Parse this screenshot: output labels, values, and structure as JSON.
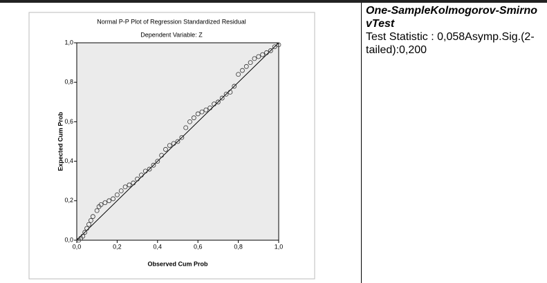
{
  "chart_data": {
    "type": "scatter",
    "title": "Normal P-P Plot of Regression Standardized Residual",
    "subtitle": "Dependent Variable: Z",
    "xlabel": "Observed Cum Prob",
    "ylabel": "Expected Cum Prob",
    "color": "#333333",
    "xlim": [
      0,
      1
    ],
    "ylim": [
      0,
      1
    ],
    "xticks": [
      {
        "value": 0,
        "label": "0,0"
      },
      {
        "value": 0.2,
        "label": "0,2"
      },
      {
        "value": 0.4,
        "label": "0,4"
      },
      {
        "value": 0.6,
        "label": "0,6"
      },
      {
        "value": 0.8,
        "label": "0,8"
      },
      {
        "value": 1,
        "label": "1,0"
      }
    ],
    "yticks": [
      {
        "value": 0,
        "label": "0,0"
      },
      {
        "value": 0.2,
        "label": "0,2"
      },
      {
        "value": 0.4,
        "label": "0,4"
      },
      {
        "value": 0.6,
        "label": "0,6"
      },
      {
        "value": 0.8,
        "label": "0,8"
      },
      {
        "value": 1,
        "label": "1,0"
      }
    ],
    "x": [
      0.01,
      0.02,
      0.03,
      0.04,
      0.05,
      0.06,
      0.07,
      0.08,
      0.1,
      0.11,
      0.12,
      0.14,
      0.16,
      0.18,
      0.2,
      0.22,
      0.24,
      0.26,
      0.28,
      0.3,
      0.32,
      0.34,
      0.36,
      0.38,
      0.4,
      0.42,
      0.44,
      0.46,
      0.48,
      0.5,
      0.52,
      0.54,
      0.56,
      0.58,
      0.6,
      0.62,
      0.64,
      0.66,
      0.68,
      0.7,
      0.72,
      0.74,
      0.76,
      0.78,
      0.8,
      0.82,
      0.84,
      0.86,
      0.88,
      0.9,
      0.92,
      0.94,
      0.96,
      0.98,
      1.0
    ],
    "values": [
      0.0,
      0.01,
      0.02,
      0.04,
      0.06,
      0.08,
      0.1,
      0.12,
      0.15,
      0.17,
      0.18,
      0.19,
      0.2,
      0.21,
      0.23,
      0.25,
      0.27,
      0.28,
      0.29,
      0.31,
      0.33,
      0.35,
      0.36,
      0.38,
      0.4,
      0.43,
      0.46,
      0.48,
      0.49,
      0.5,
      0.52,
      0.57,
      0.6,
      0.62,
      0.64,
      0.65,
      0.66,
      0.67,
      0.69,
      0.7,
      0.72,
      0.74,
      0.75,
      0.78,
      0.84,
      0.86,
      0.88,
      0.9,
      0.92,
      0.93,
      0.94,
      0.95,
      0.96,
      0.98,
      0.99
    ]
  },
  "side_text": {
    "heading": "One-SampleKolmogorov-SmirnovTest",
    "body": "Test Statistic : 0,058Asymp.Sig.(2-tailed):0,200"
  }
}
